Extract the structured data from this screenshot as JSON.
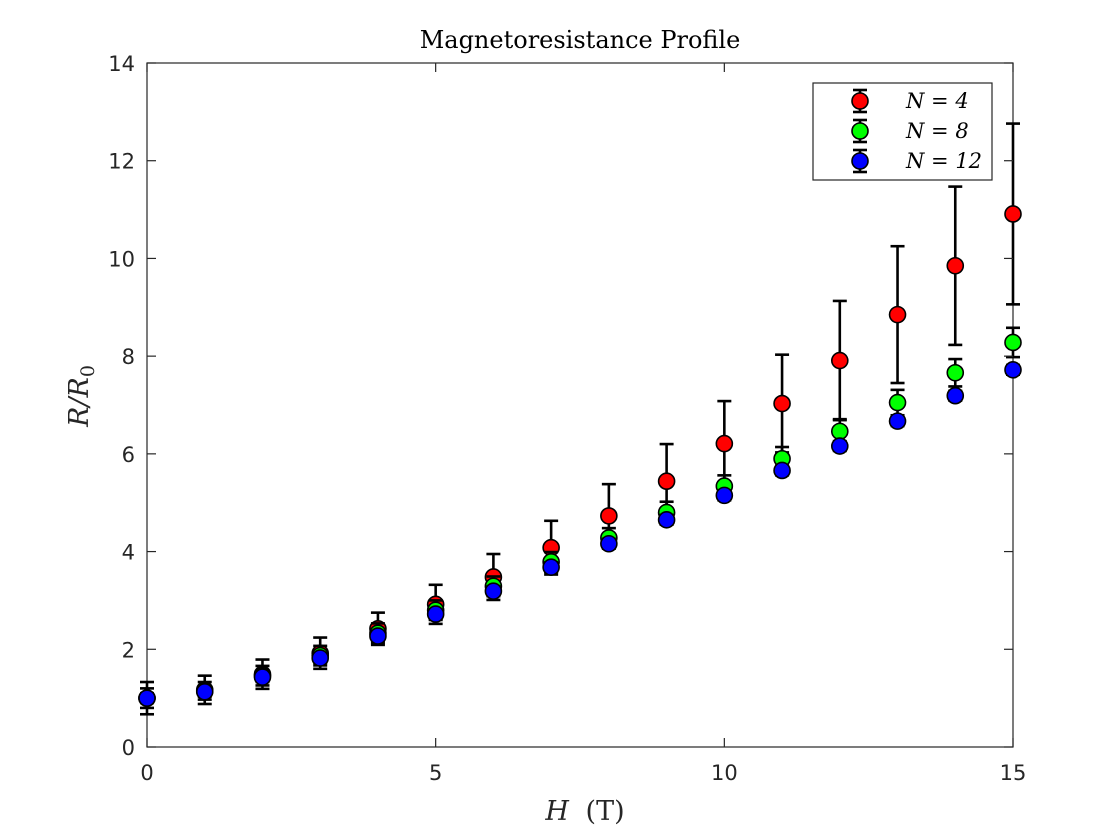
{
  "chart_data": {
    "type": "scatter",
    "title": "Magnetoresistance Profile",
    "xlabel_var": "H",
    "xlabel_unit": "(T)",
    "ylabel": "R/R",
    "ylabel_sub": "0",
    "xlim": [
      0,
      15
    ],
    "ylim": [
      0,
      14
    ],
    "xticks": [
      0,
      5,
      10,
      15
    ],
    "yticks": [
      0,
      2,
      4,
      6,
      8,
      10,
      12,
      14
    ],
    "grid": false,
    "legend_position": "top-right",
    "x": [
      0,
      1,
      2,
      3,
      4,
      5,
      6,
      7,
      8,
      9,
      10,
      11,
      12,
      13,
      14,
      15
    ],
    "series": [
      {
        "name": "N = 4",
        "color": "#ff0000",
        "values": [
          1.0,
          1.17,
          1.49,
          1.92,
          2.42,
          2.92,
          3.48,
          4.08,
          4.73,
          5.44,
          6.21,
          7.03,
          7.91,
          8.85,
          9.85,
          10.91
        ],
        "errors": [
          0.33,
          0.29,
          0.3,
          0.32,
          0.33,
          0.4,
          0.47,
          0.55,
          0.65,
          0.76,
          0.87,
          1.0,
          1.22,
          1.4,
          1.62,
          1.85
        ]
      },
      {
        "name": "N = 8",
        "color": "#00ff00",
        "values": [
          1.0,
          1.15,
          1.46,
          1.87,
          2.33,
          2.8,
          3.29,
          3.79,
          4.28,
          4.8,
          5.34,
          5.9,
          6.46,
          7.05,
          7.66,
          8.28
        ],
        "errors": [
          0.2,
          0.18,
          0.2,
          0.2,
          0.2,
          0.2,
          0.2,
          0.2,
          0.2,
          0.22,
          0.22,
          0.24,
          0.25,
          0.26,
          0.28,
          0.3
        ]
      },
      {
        "name": "N = 12",
        "color": "#0000ff",
        "values": [
          1.0,
          1.13,
          1.43,
          1.82,
          2.27,
          2.72,
          3.19,
          3.68,
          4.16,
          4.65,
          5.15,
          5.66,
          6.16,
          6.67,
          7.19,
          7.72
        ],
        "errors": [
          0.1,
          0.1,
          0.1,
          0.1,
          0.1,
          0.1,
          0.1,
          0.1,
          0.1,
          0.1,
          0.1,
          0.1,
          0.1,
          0.1,
          0.1,
          0.1
        ]
      }
    ]
  }
}
